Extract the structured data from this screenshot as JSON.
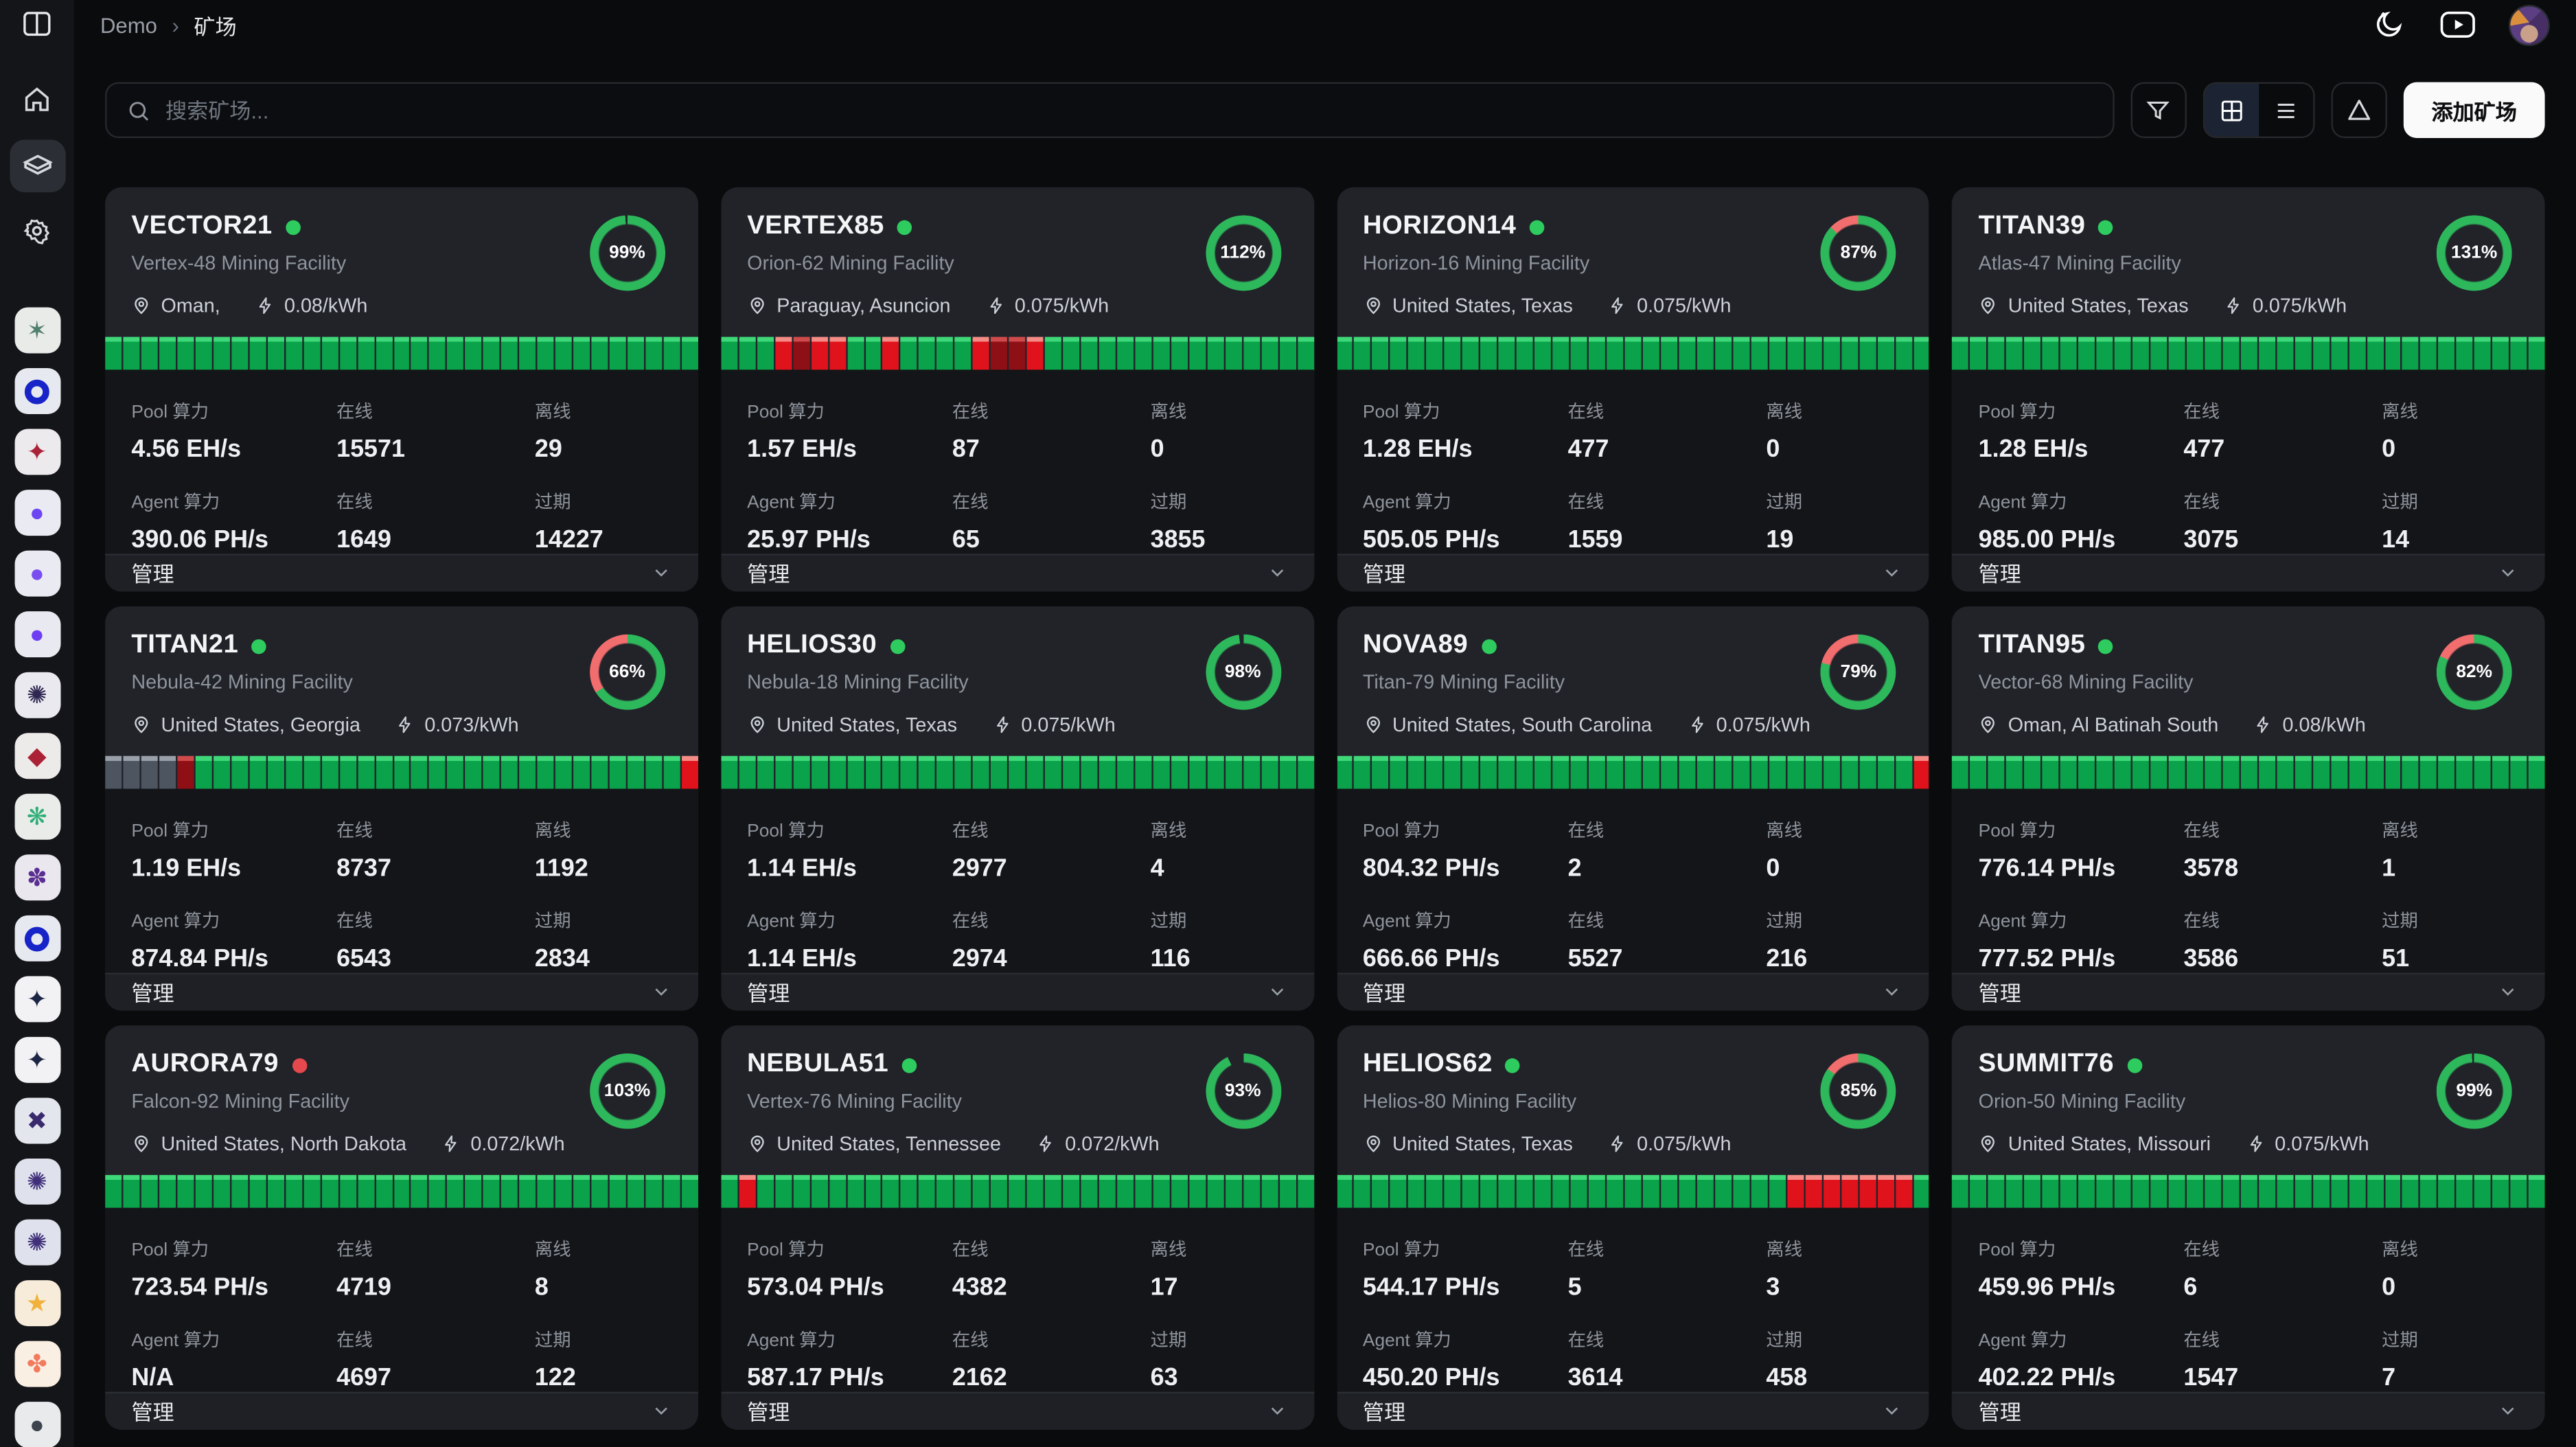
{
  "topbar": {
    "breadcrumb_root": "Demo",
    "breadcrumb_sep": "›",
    "breadcrumb_current": "矿场"
  },
  "toolbar": {
    "search_placeholder": "搜索矿场...",
    "add_button_label": "添加矿场"
  },
  "labels": {
    "pool": "Pool 算力",
    "agent": "Agent 算力",
    "online": "在线",
    "offline": "离线",
    "expired": "过期",
    "manage": "管理"
  },
  "colors": {
    "ring_green": "#2eb85c",
    "ring_red": "#f26d6d",
    "status_green": "#2ecc5e",
    "status_red": "#e5484d"
  },
  "sidebar": {
    "avatars": [
      {
        "bg": "#e9ebe9",
        "kind": "glyph",
        "glyph": "✶",
        "color": "#4f7f6d"
      },
      {
        "bg": "#e7e9f0",
        "kind": "donut",
        "color": "#1724c8"
      },
      {
        "bg": "#eceaec",
        "kind": "glyph",
        "glyph": "✦",
        "color": "#a92339"
      },
      {
        "bg": "#eaeaf2",
        "kind": "glyph",
        "glyph": "●",
        "color": "#6b46f2"
      },
      {
        "bg": "#eaeaf2",
        "kind": "glyph",
        "glyph": "●",
        "color": "#7a4df0"
      },
      {
        "bg": "#e9e9f1",
        "kind": "glyph",
        "glyph": "●",
        "color": "#6d3ef2"
      },
      {
        "bg": "#e9e9ef",
        "kind": "glyph",
        "glyph": "✺",
        "color": "#2f2752"
      },
      {
        "bg": "#edeaea",
        "kind": "glyph",
        "glyph": "◆",
        "color": "#ab2135"
      },
      {
        "bg": "#e9ece9",
        "kind": "glyph",
        "glyph": "❋",
        "color": "#2fae77"
      },
      {
        "bg": "#eae7ef",
        "kind": "glyph",
        "glyph": "✽",
        "color": "#5b2f91"
      },
      {
        "bg": "#e7e9f0",
        "kind": "donut",
        "color": "#1724c8"
      },
      {
        "bg": "#f2f2f4",
        "kind": "glyph",
        "glyph": "✦",
        "color": "#1c2544"
      },
      {
        "bg": "#f2f2f4",
        "kind": "glyph",
        "glyph": "✦",
        "color": "#1c2544"
      },
      {
        "bg": "#e4e6ee",
        "kind": "glyph",
        "glyph": "✖",
        "color": "#392a6e"
      },
      {
        "bg": "#dfe2ec",
        "kind": "glyph",
        "glyph": "✺",
        "color": "#40307a"
      },
      {
        "bg": "#dfe2ec",
        "kind": "glyph",
        "glyph": "✺",
        "color": "#40307a"
      },
      {
        "bg": "#f7ecd9",
        "kind": "glyph",
        "glyph": "★",
        "color": "#f0b23c"
      },
      {
        "bg": "#f9efe2",
        "kind": "glyph",
        "glyph": "✤",
        "color": "#f27a5e"
      },
      {
        "bg": "#e9eaec",
        "kind": "glyph",
        "glyph": "●",
        "color": "#3e444e"
      }
    ]
  },
  "cards": [
    {
      "name": "VECTOR21",
      "status": "green",
      "subtitle": "Vertex-48 Mining Facility",
      "location": "Oman,",
      "price": "0.08/kWh",
      "pct": "99%",
      "ring_green_pct": 99,
      "ring_remainder": "gap",
      "bars": "ggggggggggggggggggggggggggggggggg",
      "pool": "4.56 EH/s",
      "pool_online": "15571",
      "pool_offline": "29",
      "agent": "390.06 PH/s",
      "agent_online": "1649",
      "agent_expired": "14227"
    },
    {
      "name": "VERTEX85",
      "status": "green",
      "subtitle": "Orion-62 Mining Facility",
      "location": "Paraguay, Asuncion",
      "price": "0.075/kWh",
      "pct": "112%",
      "ring_green_pct": 100,
      "ring_remainder": "none",
      "bars": "gggrdrrggrggggrddrggggggggggggggg",
      "pool": "1.57 EH/s",
      "pool_online": "87",
      "pool_offline": "0",
      "agent": "25.97 PH/s",
      "agent_online": "65",
      "agent_expired": "3855"
    },
    {
      "name": "HORIZON14",
      "status": "green",
      "subtitle": "Horizon-16 Mining Facility",
      "location": "United States, Texas",
      "price": "0.075/kWh",
      "pct": "87%",
      "ring_green_pct": 87,
      "ring_remainder": "red",
      "bars": "ggggggggggggggggggggggggggggggggg",
      "pool": "1.28 EH/s",
      "pool_online": "477",
      "pool_offline": "0",
      "agent": "505.05 PH/s",
      "agent_online": "1559",
      "agent_expired": "19"
    },
    {
      "name": "TITAN39",
      "status": "green",
      "subtitle": "Atlas-47 Mining Facility",
      "location": "United States, Texas",
      "price": "0.075/kWh",
      "pct": "131%",
      "ring_green_pct": 100,
      "ring_remainder": "none",
      "bars": "ggggggggggggggggggggggggggggggggg",
      "pool": "1.28 EH/s",
      "pool_online": "477",
      "pool_offline": "0",
      "agent": "985.00 PH/s",
      "agent_online": "3075",
      "agent_expired": "14"
    },
    {
      "name": "TITAN21",
      "status": "green",
      "subtitle": "Nebula-42 Mining Facility",
      "location": "United States, Georgia",
      "price": "0.073/kWh",
      "pct": "66%",
      "ring_green_pct": 66,
      "ring_remainder": "red",
      "bars": "xxxxdgggggggggggggggggggggggggggr",
      "pool": "1.19 EH/s",
      "pool_online": "8737",
      "pool_offline": "1192",
      "agent": "874.84 PH/s",
      "agent_online": "6543",
      "agent_expired": "2834"
    },
    {
      "name": "HELIOS30",
      "status": "green",
      "subtitle": "Nebula-18 Mining Facility",
      "location": "United States, Texas",
      "price": "0.075/kWh",
      "pct": "98%",
      "ring_green_pct": 98,
      "ring_remainder": "gap",
      "bars": "ggggggggggggggggggggggggggggggggg",
      "pool": "1.14 EH/s",
      "pool_online": "2977",
      "pool_offline": "4",
      "agent": "1.14 EH/s",
      "agent_online": "2974",
      "agent_expired": "116"
    },
    {
      "name": "NOVA89",
      "status": "green",
      "subtitle": "Titan-79 Mining Facility",
      "location": "United States, South Carolina",
      "price": "0.075/kWh",
      "pct": "79%",
      "ring_green_pct": 79,
      "ring_remainder": "red",
      "bars": "ggggggggggggggggggggggggggggggggr",
      "pool": "804.32 PH/s",
      "pool_online": "2",
      "pool_offline": "0",
      "agent": "666.66 PH/s",
      "agent_online": "5527",
      "agent_expired": "216"
    },
    {
      "name": "TITAN95",
      "status": "green",
      "subtitle": "Vector-68 Mining Facility",
      "location": "Oman, Al Batinah South",
      "price": "0.08/kWh",
      "pct": "82%",
      "ring_green_pct": 82,
      "ring_remainder": "red",
      "bars": "ggggggggggggggggggggggggggggggggg",
      "pool": "776.14 PH/s",
      "pool_online": "3578",
      "pool_offline": "1",
      "agent": "777.52 PH/s",
      "agent_online": "3586",
      "agent_expired": "51"
    },
    {
      "name": "AURORA79",
      "status": "red",
      "subtitle": "Falcon-92 Mining Facility",
      "location": "United States, North Dakota",
      "price": "0.072/kWh",
      "pct": "103%",
      "ring_green_pct": 100,
      "ring_remainder": "none",
      "bars": "ggggggggggggggggggggggggggggggggg",
      "pool": "723.54 PH/s",
      "pool_online": "4719",
      "pool_offline": "8",
      "agent": "N/A",
      "agent_online": "4697",
      "agent_expired": "122"
    },
    {
      "name": "NEBULA51",
      "status": "green",
      "subtitle": "Vertex-76 Mining Facility",
      "location": "United States, Tennessee",
      "price": "0.072/kWh",
      "pct": "93%",
      "ring_green_pct": 93,
      "ring_remainder": "gap",
      "bars": "grggggggggggggggggggggggggggggggg",
      "pool": "573.04 PH/s",
      "pool_online": "4382",
      "pool_offline": "17",
      "agent": "587.17 PH/s",
      "agent_online": "2162",
      "agent_expired": "63"
    },
    {
      "name": "HELIOS62",
      "status": "green",
      "subtitle": "Helios-80 Mining Facility",
      "location": "United States, Texas",
      "price": "0.075/kWh",
      "pct": "85%",
      "ring_green_pct": 85,
      "ring_remainder": "red",
      "bars": "gggggggggggggggggggggggggrrrrrrrg",
      "pool": "544.17 PH/s",
      "pool_online": "5",
      "pool_offline": "3",
      "agent": "450.20 PH/s",
      "agent_online": "3614",
      "agent_expired": "458"
    },
    {
      "name": "SUMMIT76",
      "status": "green",
      "subtitle": "Orion-50 Mining Facility",
      "location": "United States, Missouri",
      "price": "0.075/kWh",
      "pct": "99%",
      "ring_green_pct": 99,
      "ring_remainder": "gap",
      "bars": "ggggggggggggggggggggggggggggggggg",
      "pool": "459.96 PH/s",
      "pool_online": "6",
      "pool_offline": "0",
      "agent": "402.22 PH/s",
      "agent_online": "1547",
      "agent_expired": "7"
    }
  ]
}
